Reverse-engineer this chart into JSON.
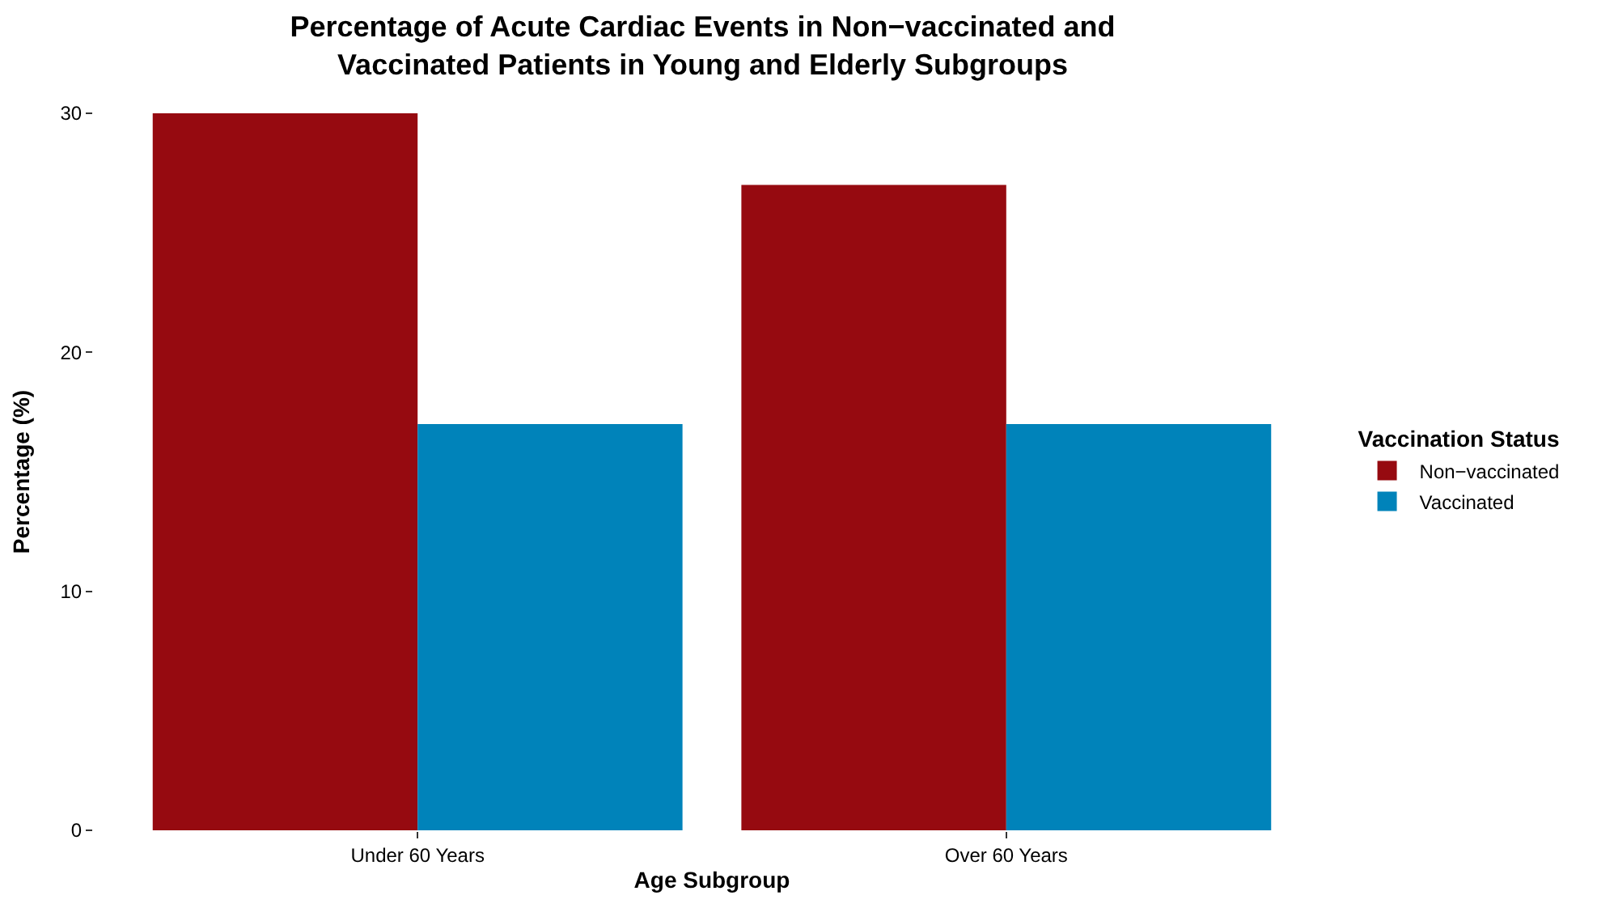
{
  "chart_data": {
    "type": "bar",
    "title": "Percentage of Acute Cardiac Events in Non−vaccinated and\nVaccinated Patients in Young and Elderly Subgroups",
    "xlabel": "Age Subgroup",
    "ylabel": "Percentage (%)",
    "legend_title": "Vaccination Status",
    "categories": [
      "Under 60 Years",
      "Over 60 Years"
    ],
    "series": [
      {
        "name": "Non−vaccinated",
        "color": "#960a10",
        "values": [
          30,
          27
        ]
      },
      {
        "name": "Vaccinated",
        "color": "#0083ba",
        "values": [
          17,
          17
        ]
      }
    ],
    "ylim": [
      0,
      30
    ],
    "yticks": [
      0,
      10,
      20,
      30
    ],
    "legend": "right"
  }
}
